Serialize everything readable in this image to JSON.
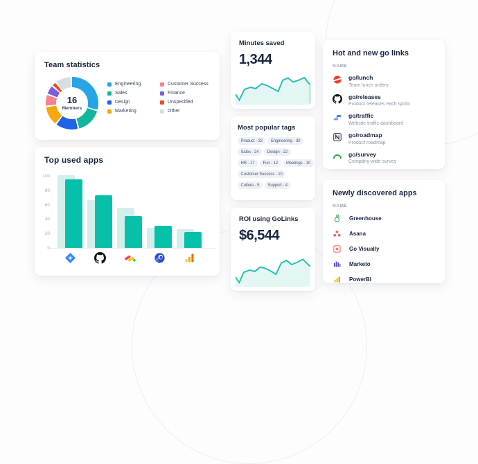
{
  "theme": {
    "accent_teal": "#07c0aa",
    "spark_stroke": "#25c3b0",
    "spark_fill": "#e4f6f3",
    "navy_text": "#1a2742"
  },
  "team_stats": {
    "title": "Team statistics",
    "center_value": "16",
    "center_label": "Members",
    "chart_data": {
      "type": "pie",
      "gap_percent": 1,
      "segments": [
        {
          "label": "Engineering",
          "color": "#27a4e4",
          "percent": 29
        },
        {
          "label": "Sales",
          "color": "#0fb89c",
          "percent": 15.5
        },
        {
          "label": "Design",
          "color": "#2163e6",
          "percent": 13.5
        },
        {
          "label": "Marketing",
          "color": "#f7a70c",
          "percent": 11.5
        },
        {
          "label": "Customer Success",
          "color": "#f8828f",
          "percent": 6.5
        },
        {
          "label": "Finance",
          "color": "#7a5fe0",
          "percent": 5
        },
        {
          "label": "Unspecified",
          "color": "#ee4a23",
          "percent": 2
        },
        {
          "label": "Other",
          "color": "#d9dde2",
          "percent": 9
        }
      ]
    }
  },
  "top_apps": {
    "title": "Top used apps",
    "chart_data": {
      "type": "bar",
      "categories": [
        "Jira",
        "GitHub",
        "monday.com",
        "Rocket",
        "Google Analytics"
      ],
      "series": [
        {
          "name": "ghost",
          "color": "#d2efeb",
          "values": [
            101,
            66,
            56,
            28,
            26
          ]
        },
        {
          "name": "main",
          "color": "#07c0aa",
          "values": [
            95,
            73,
            44,
            31,
            22
          ]
        }
      ],
      "ylim": [
        0,
        100
      ],
      "yticks": [
        100,
        80,
        60,
        40,
        20,
        0
      ],
      "grid": false,
      "legend": "none"
    }
  },
  "minutes_saved": {
    "title": "Minutes saved",
    "value": "1,344",
    "chart_data": {
      "type": "area",
      "stroke": "#25c3b0",
      "fill": "#e4f6f3",
      "points": [
        [
          0,
          30
        ],
        [
          5,
          13
        ],
        [
          12,
          44
        ],
        [
          20,
          50
        ],
        [
          27,
          46
        ],
        [
          35,
          60
        ],
        [
          42,
          55
        ],
        [
          50,
          46
        ],
        [
          57,
          38
        ],
        [
          63,
          70
        ],
        [
          70,
          77
        ],
        [
          77,
          65
        ],
        [
          84,
          70
        ],
        [
          92,
          78
        ],
        [
          98,
          61
        ],
        [
          100,
          58
        ],
        [
          100,
          3
        ]
      ]
    }
  },
  "popular_tags": {
    "title": "Most popular tags",
    "rows": [
      [
        "Product - 32",
        "Engineering - 30"
      ],
      [
        "Sales - 24",
        "Design - 22"
      ],
      [
        "HR - 17",
        "Fun - 12",
        "Meetings - 10"
      ],
      [
        "Customer Success - 10"
      ],
      [
        "Culture - 5",
        "Support - 4"
      ]
    ]
  },
  "roi": {
    "title": "ROI using GoLinks",
    "value": "$6,544",
    "chart_data": {
      "type": "area",
      "stroke": "#25c3b0",
      "fill": "#e4f6f3",
      "points": [
        [
          0,
          28
        ],
        [
          5,
          12
        ],
        [
          11,
          42
        ],
        [
          19,
          48
        ],
        [
          26,
          44
        ],
        [
          33,
          57
        ],
        [
          41,
          52
        ],
        [
          48,
          44
        ],
        [
          54,
          36
        ],
        [
          61,
          68
        ],
        [
          68,
          76
        ],
        [
          75,
          64
        ],
        [
          82,
          70
        ],
        [
          90,
          79
        ],
        [
          100,
          58
        ]
      ]
    }
  },
  "golinks": {
    "title": "Hot and new go links",
    "column_header": "NAME",
    "items": [
      {
        "name": "go/lunch",
        "description": "Team lunch orders",
        "icon": "doordash-icon"
      },
      {
        "name": "go/releases",
        "description": "Product releases each sprint",
        "icon": "github-icon"
      },
      {
        "name": "go/traffic",
        "description": "Website traffic dashboard",
        "icon": "traffic-bars-icon"
      },
      {
        "name": "go/roadmap",
        "description": "Product roadmap",
        "icon": "notion-icon"
      },
      {
        "name": "go/survey",
        "description": "Company-wide survey",
        "icon": "survey-arc-icon"
      }
    ]
  },
  "new_apps": {
    "title": "Newly discovered apps",
    "column_header": "NAME",
    "items": [
      {
        "name": "Greenhouse",
        "icon": "greenhouse-icon"
      },
      {
        "name": "Asana",
        "icon": "asana-icon"
      },
      {
        "name": "Go Visually",
        "icon": "go-visually-icon"
      },
      {
        "name": "Marketo",
        "icon": "marketo-icon"
      },
      {
        "name": "PowerBI",
        "icon": "powerbi-icon"
      }
    ]
  }
}
